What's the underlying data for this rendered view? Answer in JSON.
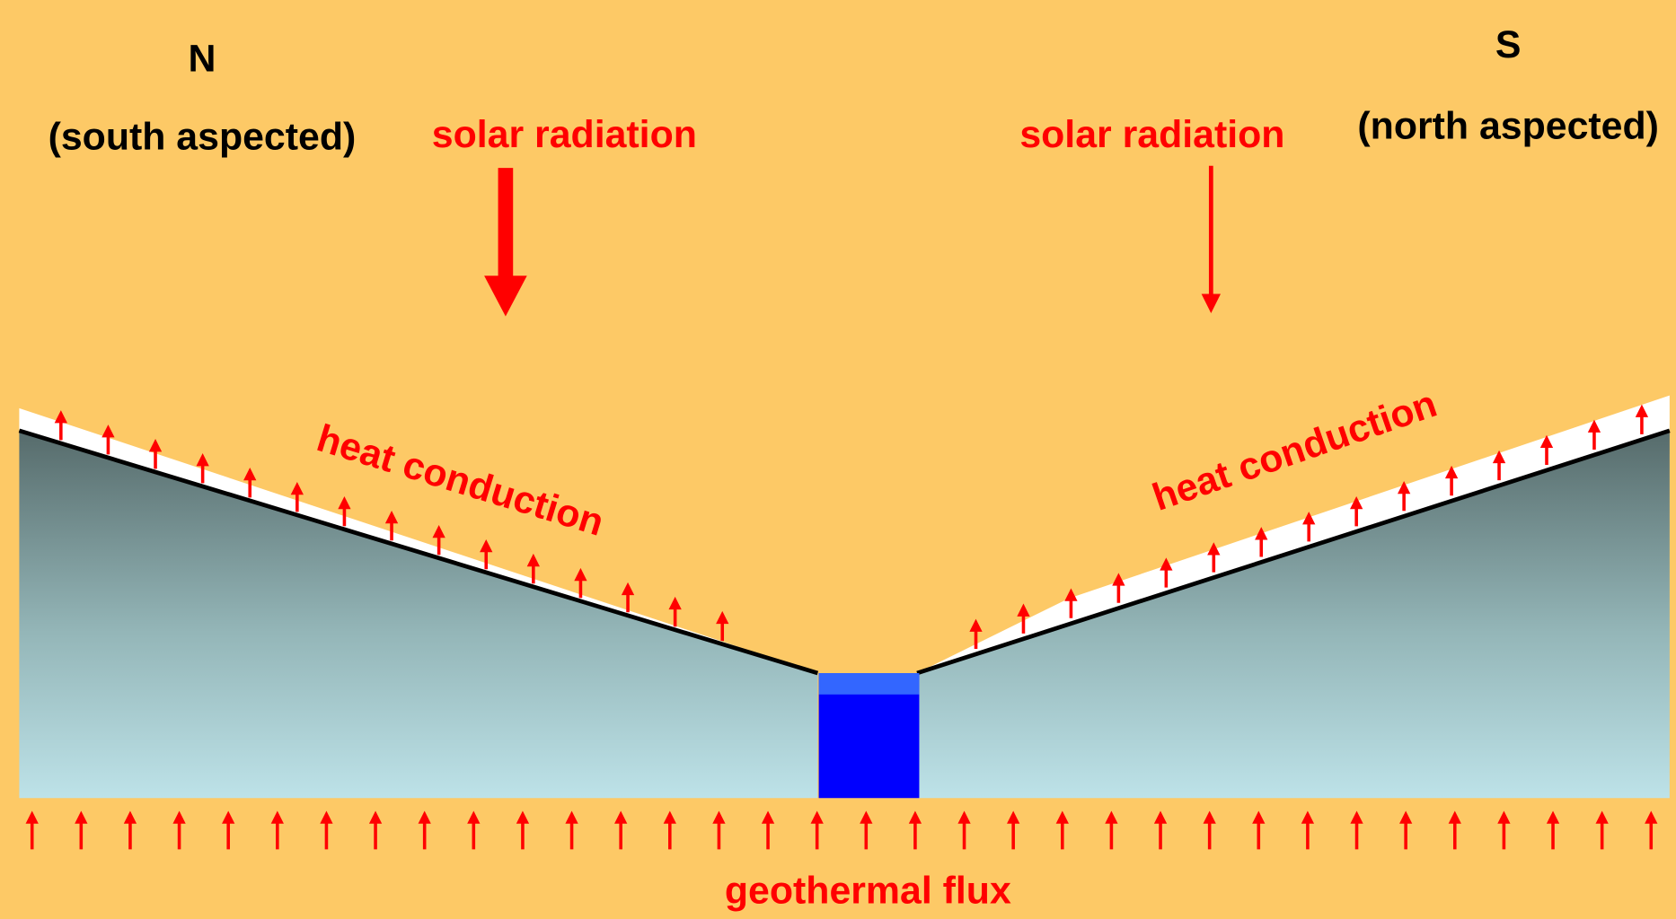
{
  "north": {
    "label": "N",
    "aspect": "(south aspected)"
  },
  "south": {
    "label": "S",
    "aspect": "(north aspected)"
  },
  "left_slope": {
    "radiation": "solar radiation",
    "conduction": "heat conduction"
  },
  "right_slope": {
    "radiation": "solar radiation",
    "conduction": "heat conduction"
  },
  "bottom": {
    "flux": "geothermal flux"
  }
}
